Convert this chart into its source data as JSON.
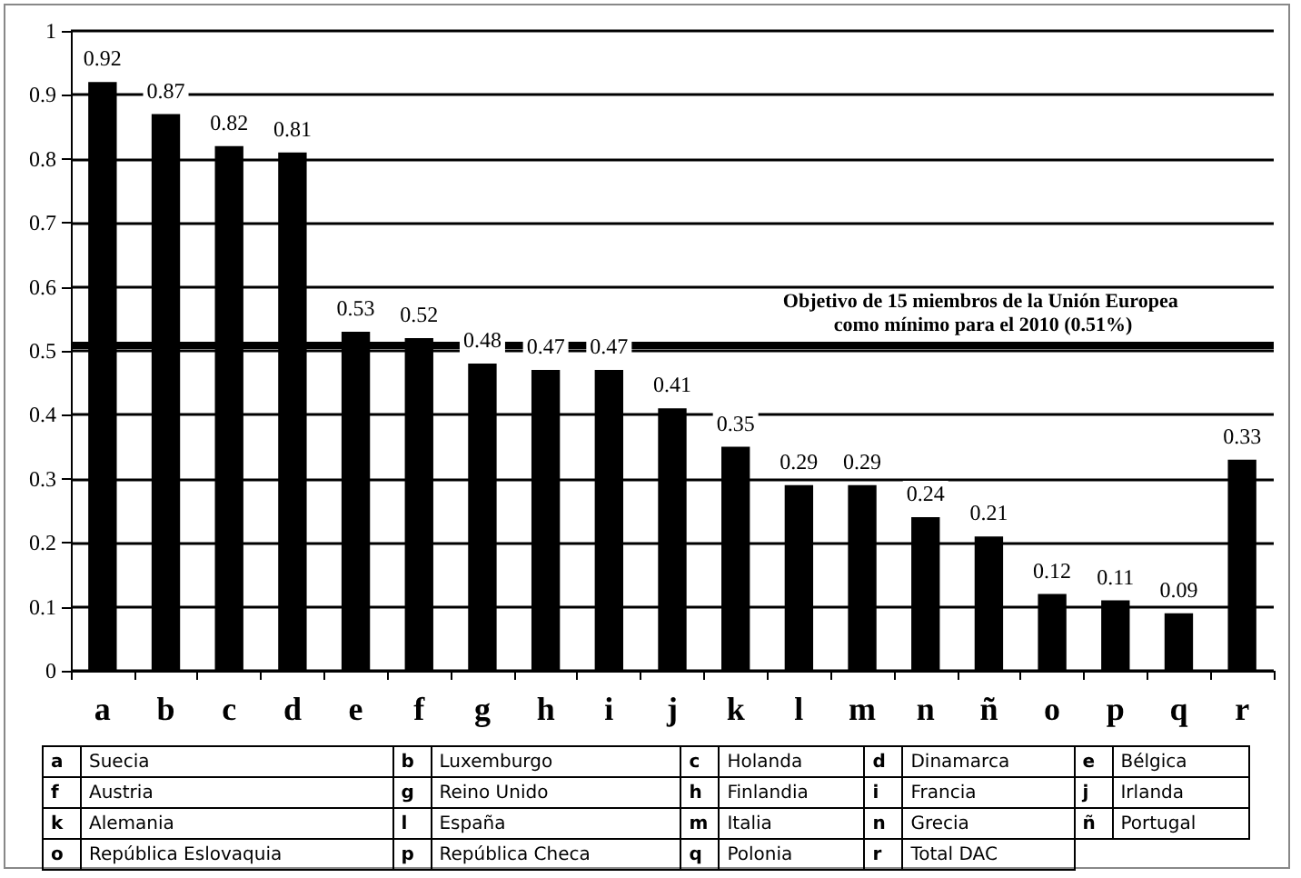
{
  "chart_data": {
    "type": "bar",
    "categories": [
      "a",
      "b",
      "c",
      "d",
      "e",
      "f",
      "g",
      "h",
      "i",
      "j",
      "k",
      "l",
      "m",
      "n",
      "ñ",
      "o",
      "p",
      "q",
      "r"
    ],
    "values": [
      0.92,
      0.87,
      0.82,
      0.81,
      0.53,
      0.52,
      0.48,
      0.47,
      0.47,
      0.41,
      0.35,
      0.29,
      0.29,
      0.24,
      0.21,
      0.12,
      0.11,
      0.09,
      0.33
    ],
    "color": "#000000",
    "ylim": [
      0,
      1
    ],
    "yticks": [
      0,
      0.1,
      0.2,
      0.3,
      0.4,
      0.5,
      0.6,
      0.7,
      0.8,
      0.9,
      1
    ],
    "grid": "y",
    "data_labels": true,
    "ref_lines": [
      {
        "axis": "y",
        "value": 0.51,
        "label": "Objetivo de 15 miembros de la Unión Europea como mínimo para el 2010 (0.51%)",
        "color": "#000000"
      }
    ],
    "annotations": [
      "a",
      "Suecia",
      "b",
      "Luxemburgo",
      "c",
      "Holanda",
      "d",
      "Dinamarca",
      "e",
      "Bélgica",
      "f",
      "Austria",
      "g",
      "Reino Unido",
      "h",
      "Finlandia",
      "i",
      "Francia",
      "j",
      "Irlanda",
      "k",
      "Alemania",
      "l",
      "España",
      "m",
      "Italia",
      "n",
      "Grecia",
      "ñ",
      "Portugal",
      "o",
      "República Eslovaquia",
      "p",
      "República Checa",
      "q",
      "Polonia",
      "r",
      "Total DAC"
    ]
  }
}
